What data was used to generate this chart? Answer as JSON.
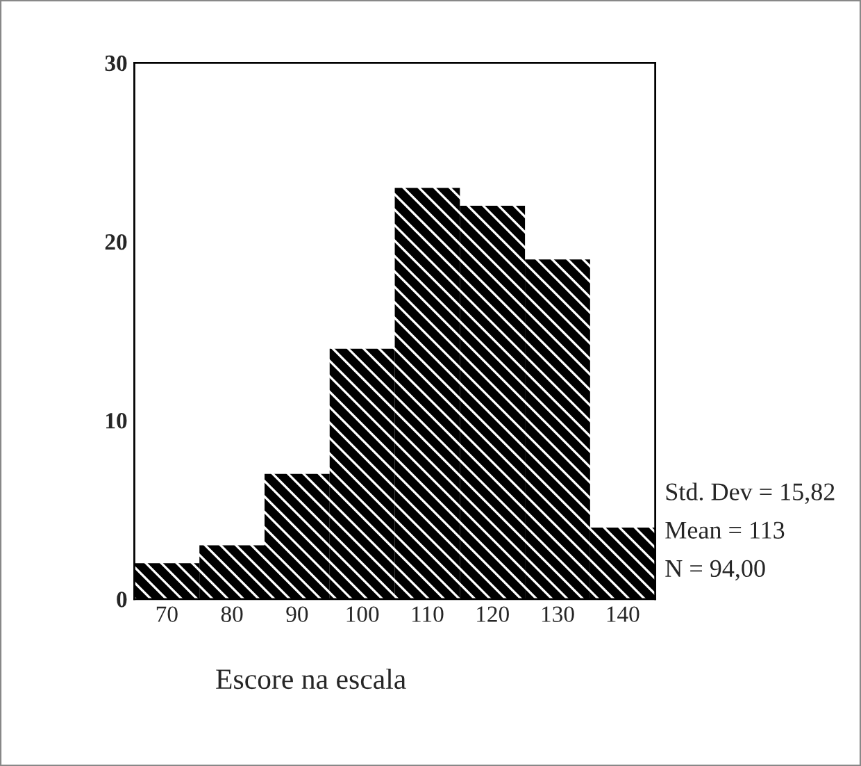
{
  "chart_data": {
    "type": "histogram",
    "xlabel": "Escore na escala",
    "bins": [
      65,
      75,
      85,
      95,
      105,
      115,
      125,
      135,
      145
    ],
    "values": [
      2,
      3,
      7,
      14,
      23,
      22,
      19,
      4
    ],
    "color": "#000000",
    "xlim": [
      65,
      145
    ],
    "xticks": [
      70,
      80,
      90,
      100,
      110,
      120,
      130,
      140
    ],
    "ylim": [
      0,
      30
    ],
    "yticks": [
      0,
      10,
      20,
      30
    ],
    "grid": false,
    "legend": false,
    "annotations": [
      "Std. Dev = 15,82",
      "Mean = 113",
      "N = 94,00"
    ]
  }
}
